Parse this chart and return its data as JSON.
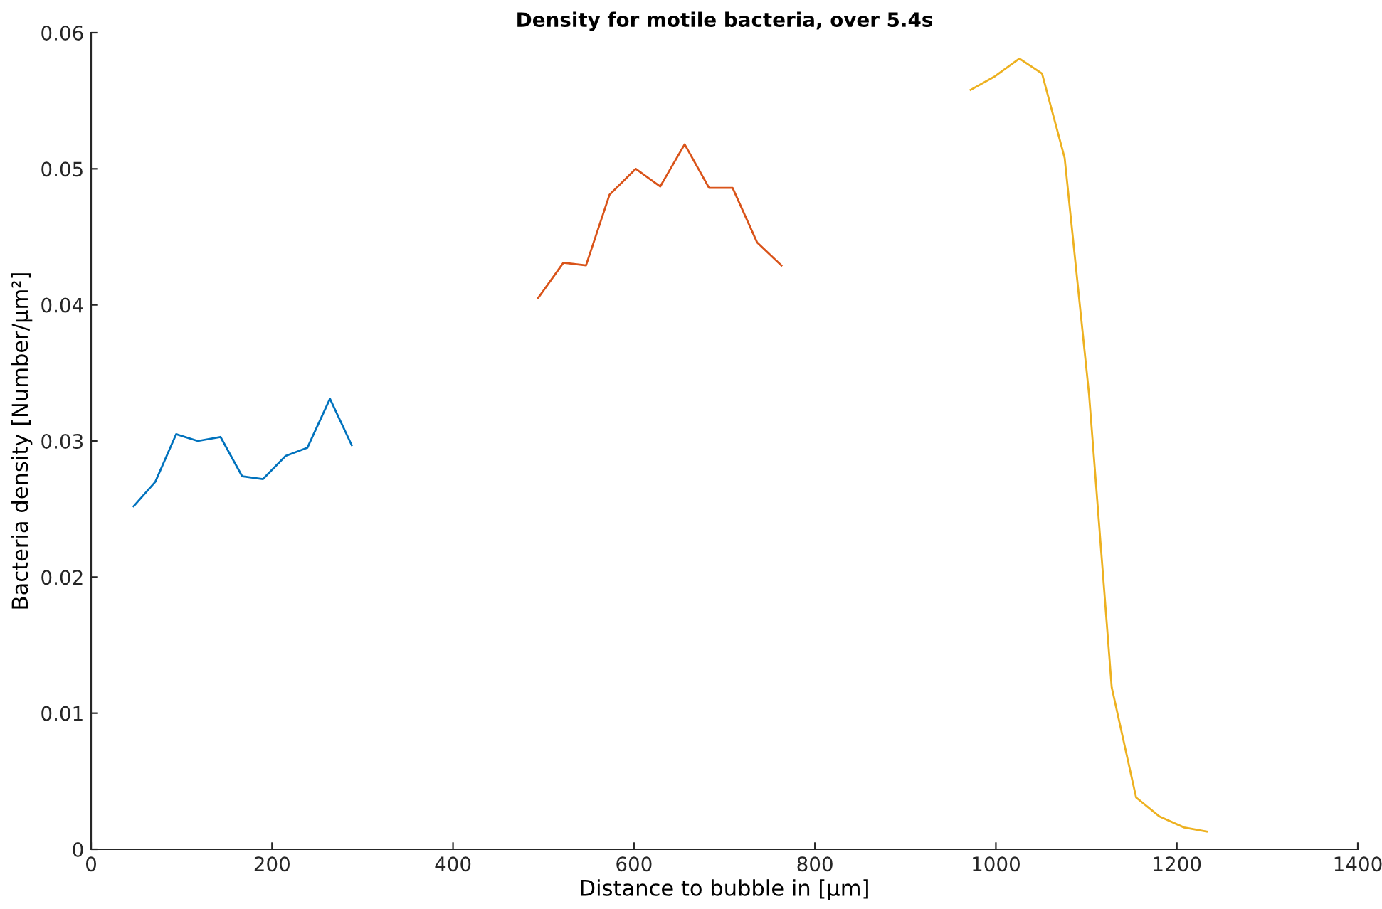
{
  "chart_data": {
    "type": "line",
    "title": "Density for motile bacteria, over 5.4s",
    "xlabel": "Distance to bubble in [μm]",
    "ylabel": "Bacteria density [Number/μm²]",
    "xlim": [
      0,
      1400
    ],
    "xticks": [
      0,
      200,
      400,
      600,
      800,
      1000,
      1200,
      1400
    ],
    "ylim": [
      0,
      0.06
    ],
    "yticks": [
      0,
      0.01,
      0.02,
      0.03,
      0.04,
      0.05,
      0.06
    ],
    "grid": false,
    "legend": false,
    "marker": "none",
    "line_style": "solid",
    "series": [
      {
        "color": "#0072bd",
        "x": [
          47,
          71,
          94,
          118,
          143,
          167,
          190,
          215,
          239,
          264,
          288
        ],
        "values": [
          0.0252,
          0.027,
          0.0305,
          0.03,
          0.0303,
          0.0274,
          0.0272,
          0.0289,
          0.0295,
          0.0331,
          0.0297
        ]
      },
      {
        "color": "#d95319",
        "x": [
          494,
          522,
          547,
          573,
          602,
          629,
          656,
          683,
          709,
          736,
          763
        ],
        "values": [
          0.0405,
          0.0431,
          0.0429,
          0.0481,
          0.05,
          0.0487,
          0.0518,
          0.0486,
          0.0486,
          0.0446,
          0.0429
        ]
      },
      {
        "color": "#edb120",
        "x": [
          972,
          999,
          1026,
          1051,
          1076,
          1103,
          1128,
          1155,
          1181,
          1208,
          1233
        ],
        "values": [
          0.0558,
          0.0568,
          0.0581,
          0.057,
          0.0508,
          0.0334,
          0.0119,
          0.0038,
          0.0024,
          0.0016,
          0.0013
        ]
      }
    ]
  }
}
